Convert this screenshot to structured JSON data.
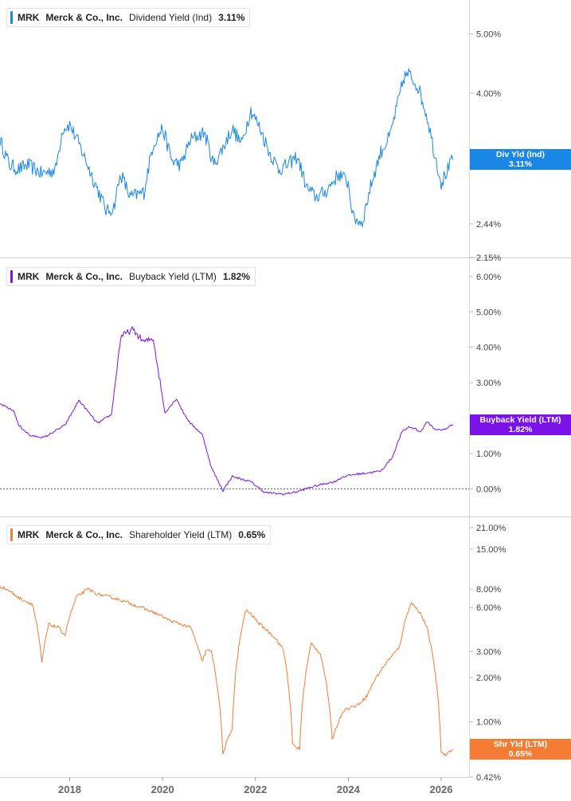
{
  "colors": {
    "blue": "#1a86e6",
    "purple": "#7b12e8",
    "orange": "#f47c34"
  },
  "x_axis": {
    "tick_labels": [
      "2018",
      "2020",
      "2022",
      "2024",
      "2026"
    ],
    "x_range": [
      2016.5,
      2026.6
    ]
  },
  "panels": [
    {
      "legend": {
        "ticker": "MRK",
        "company": "Merck & Co., Inc.",
        "metric": "Dividend Yield (Ind)",
        "value": "3.11%"
      },
      "badge": {
        "line1": "Div Yld (Ind)",
        "line2": "3.11%"
      }
    },
    {
      "legend": {
        "ticker": "MRK",
        "company": "Merck & Co., Inc.",
        "metric": "Buyback Yield (LTM)",
        "value": "1.82%"
      },
      "badge": {
        "line1": "Buyback Yield (LTM)",
        "line2": "1.82%"
      }
    },
    {
      "legend": {
        "ticker": "MRK",
        "company": "Merck & Co., Inc.",
        "metric": "Shareholder Yield (LTM)",
        "value": "0.65%"
      },
      "badge": {
        "line1": "Shr Yld (LTM)",
        "line2": "0.65%"
      }
    }
  ],
  "chart_data": [
    {
      "type": "line",
      "scale": "log",
      "ylim": [
        2.15,
        5.6
      ],
      "tick_labels": [
        "5.00%",
        "4.00%",
        "3.11%",
        "2.44%",
        "2.15%"
      ],
      "tick_values": [
        5.0,
        4.0,
        3.11,
        2.44,
        2.15
      ],
      "hidden_tick_labels": [
        "3.00%"
      ],
      "series": [
        {
          "name": "Dividend Yield (Ind)",
          "x": [
            2016.5,
            2016.7,
            2016.9,
            2017.1,
            2017.4,
            2017.7,
            2017.85,
            2018.0,
            2018.2,
            2018.5,
            2018.8,
            2018.95,
            2019.1,
            2019.3,
            2019.6,
            2019.8,
            2020.0,
            2020.2,
            2020.4,
            2020.6,
            2020.9,
            2021.1,
            2021.3,
            2021.5,
            2021.7,
            2021.9,
            2022.1,
            2022.3,
            2022.5,
            2022.7,
            2022.9,
            2023.1,
            2023.3,
            2023.5,
            2023.8,
            2024.0,
            2024.1,
            2024.3,
            2024.5,
            2024.7,
            2024.9,
            2025.1,
            2025.2,
            2025.3,
            2025.5,
            2025.7,
            2025.85,
            2026.0,
            2026.1,
            2026.25
          ],
          "values": [
            3.35,
            3.05,
            3.0,
            3.05,
            2.95,
            3.0,
            3.5,
            3.55,
            3.3,
            2.9,
            2.55,
            2.6,
            2.95,
            2.7,
            2.75,
            3.3,
            3.5,
            3.1,
            3.05,
            3.35,
            3.45,
            3.05,
            3.25,
            3.5,
            3.3,
            3.75,
            3.5,
            3.2,
            3.0,
            3.05,
            3.15,
            2.8,
            2.7,
            2.75,
            2.95,
            2.85,
            2.5,
            2.45,
            2.85,
            3.2,
            3.4,
            3.95,
            4.25,
            4.3,
            4.1,
            3.65,
            3.2,
            2.85,
            2.95,
            3.11
          ]
        }
      ]
    },
    {
      "type": "line",
      "scale": "linear",
      "ylim": [
        -0.6,
        6.2
      ],
      "tick_labels": [
        "6.00%",
        "5.00%",
        "4.00%",
        "3.00%",
        "2.00%",
        "1.00%",
        "0.00%"
      ],
      "tick_values": [
        6,
        5,
        4,
        3,
        2,
        1,
        0
      ],
      "zero_line": true,
      "series": [
        {
          "name": "Buyback Yield (LTM)",
          "x": [
            2016.5,
            2016.8,
            2016.9,
            2017.15,
            2017.45,
            2017.9,
            2018.2,
            2018.6,
            2018.9,
            2019.1,
            2019.35,
            2019.6,
            2019.8,
            2020.05,
            2020.3,
            2020.45,
            2020.6,
            2020.85,
            2020.95,
            2021.05,
            2021.3,
            2021.5,
            2021.9,
            2022.2,
            2022.6,
            2022.9,
            2023.2,
            2023.5,
            2023.7,
            2023.9,
            2024.1,
            2024.4,
            2024.7,
            2024.95,
            2025.15,
            2025.3,
            2025.45,
            2025.55,
            2025.7,
            2025.85,
            2026.0,
            2026.1,
            2026.25
          ],
          "values": [
            2.4,
            2.2,
            1.8,
            1.5,
            1.45,
            1.8,
            2.5,
            1.85,
            2.1,
            4.3,
            4.5,
            4.15,
            4.25,
            2.15,
            2.55,
            2.15,
            1.85,
            1.55,
            1.1,
            0.6,
            -0.05,
            0.35,
            0.2,
            -0.1,
            -0.15,
            -0.08,
            0.05,
            0.15,
            0.2,
            0.35,
            0.4,
            0.45,
            0.5,
            0.9,
            1.6,
            1.75,
            1.7,
            1.6,
            1.9,
            1.7,
            1.65,
            1.7,
            1.82
          ]
        }
      ]
    },
    {
      "type": "line",
      "scale": "log",
      "ylim": [
        0.42,
        21.0
      ],
      "tick_labels": [
        "21.00%",
        "15.00%",
        "8.00%",
        "6.00%",
        "3.00%",
        "2.00%",
        "1.00%",
        "0.65%",
        "0.42%"
      ],
      "tick_values": [
        21,
        15,
        8,
        6,
        3,
        2,
        1,
        0.65,
        0.42
      ],
      "hidden_tick_labels": [
        "0.7"
      ],
      "series": [
        {
          "name": "Shareholder Yield (LTM)",
          "x": [
            2016.5,
            2016.7,
            2016.9,
            2017.2,
            2017.4,
            2017.55,
            2017.75,
            2017.9,
            2018.15,
            2018.4,
            2018.6,
            2019.0,
            2019.3,
            2019.6,
            2019.9,
            2020.15,
            2020.5,
            2020.6,
            2020.85,
            2020.95,
            2021.05,
            2021.3,
            2021.5,
            2021.8,
            2022.1,
            2022.4,
            2022.6,
            2022.8,
            2022.95,
            2023.2,
            2023.4,
            2023.65,
            2023.9,
            2024.2,
            2024.4,
            2024.6,
            2024.85,
            2025.1,
            2025.35,
            2025.55,
            2025.7,
            2025.8,
            2026.0,
            2026.1,
            2026.25
          ],
          "values": [
            8.4,
            7.8,
            7.0,
            6.3,
            2.5,
            4.6,
            4.4,
            3.9,
            7.1,
            8.0,
            7.4,
            6.9,
            6.4,
            5.9,
            5.4,
            4.9,
            4.5,
            4.4,
            2.55,
            3.1,
            3.0,
            0.6,
            0.9,
            5.8,
            4.6,
            3.8,
            3.1,
            0.7,
            0.65,
            3.4,
            2.9,
            0.75,
            1.2,
            1.3,
            1.5,
            2.0,
            2.6,
            3.2,
            6.5,
            5.5,
            4.3,
            3.0,
            0.62,
            0.6,
            0.65
          ]
        }
      ]
    }
  ]
}
